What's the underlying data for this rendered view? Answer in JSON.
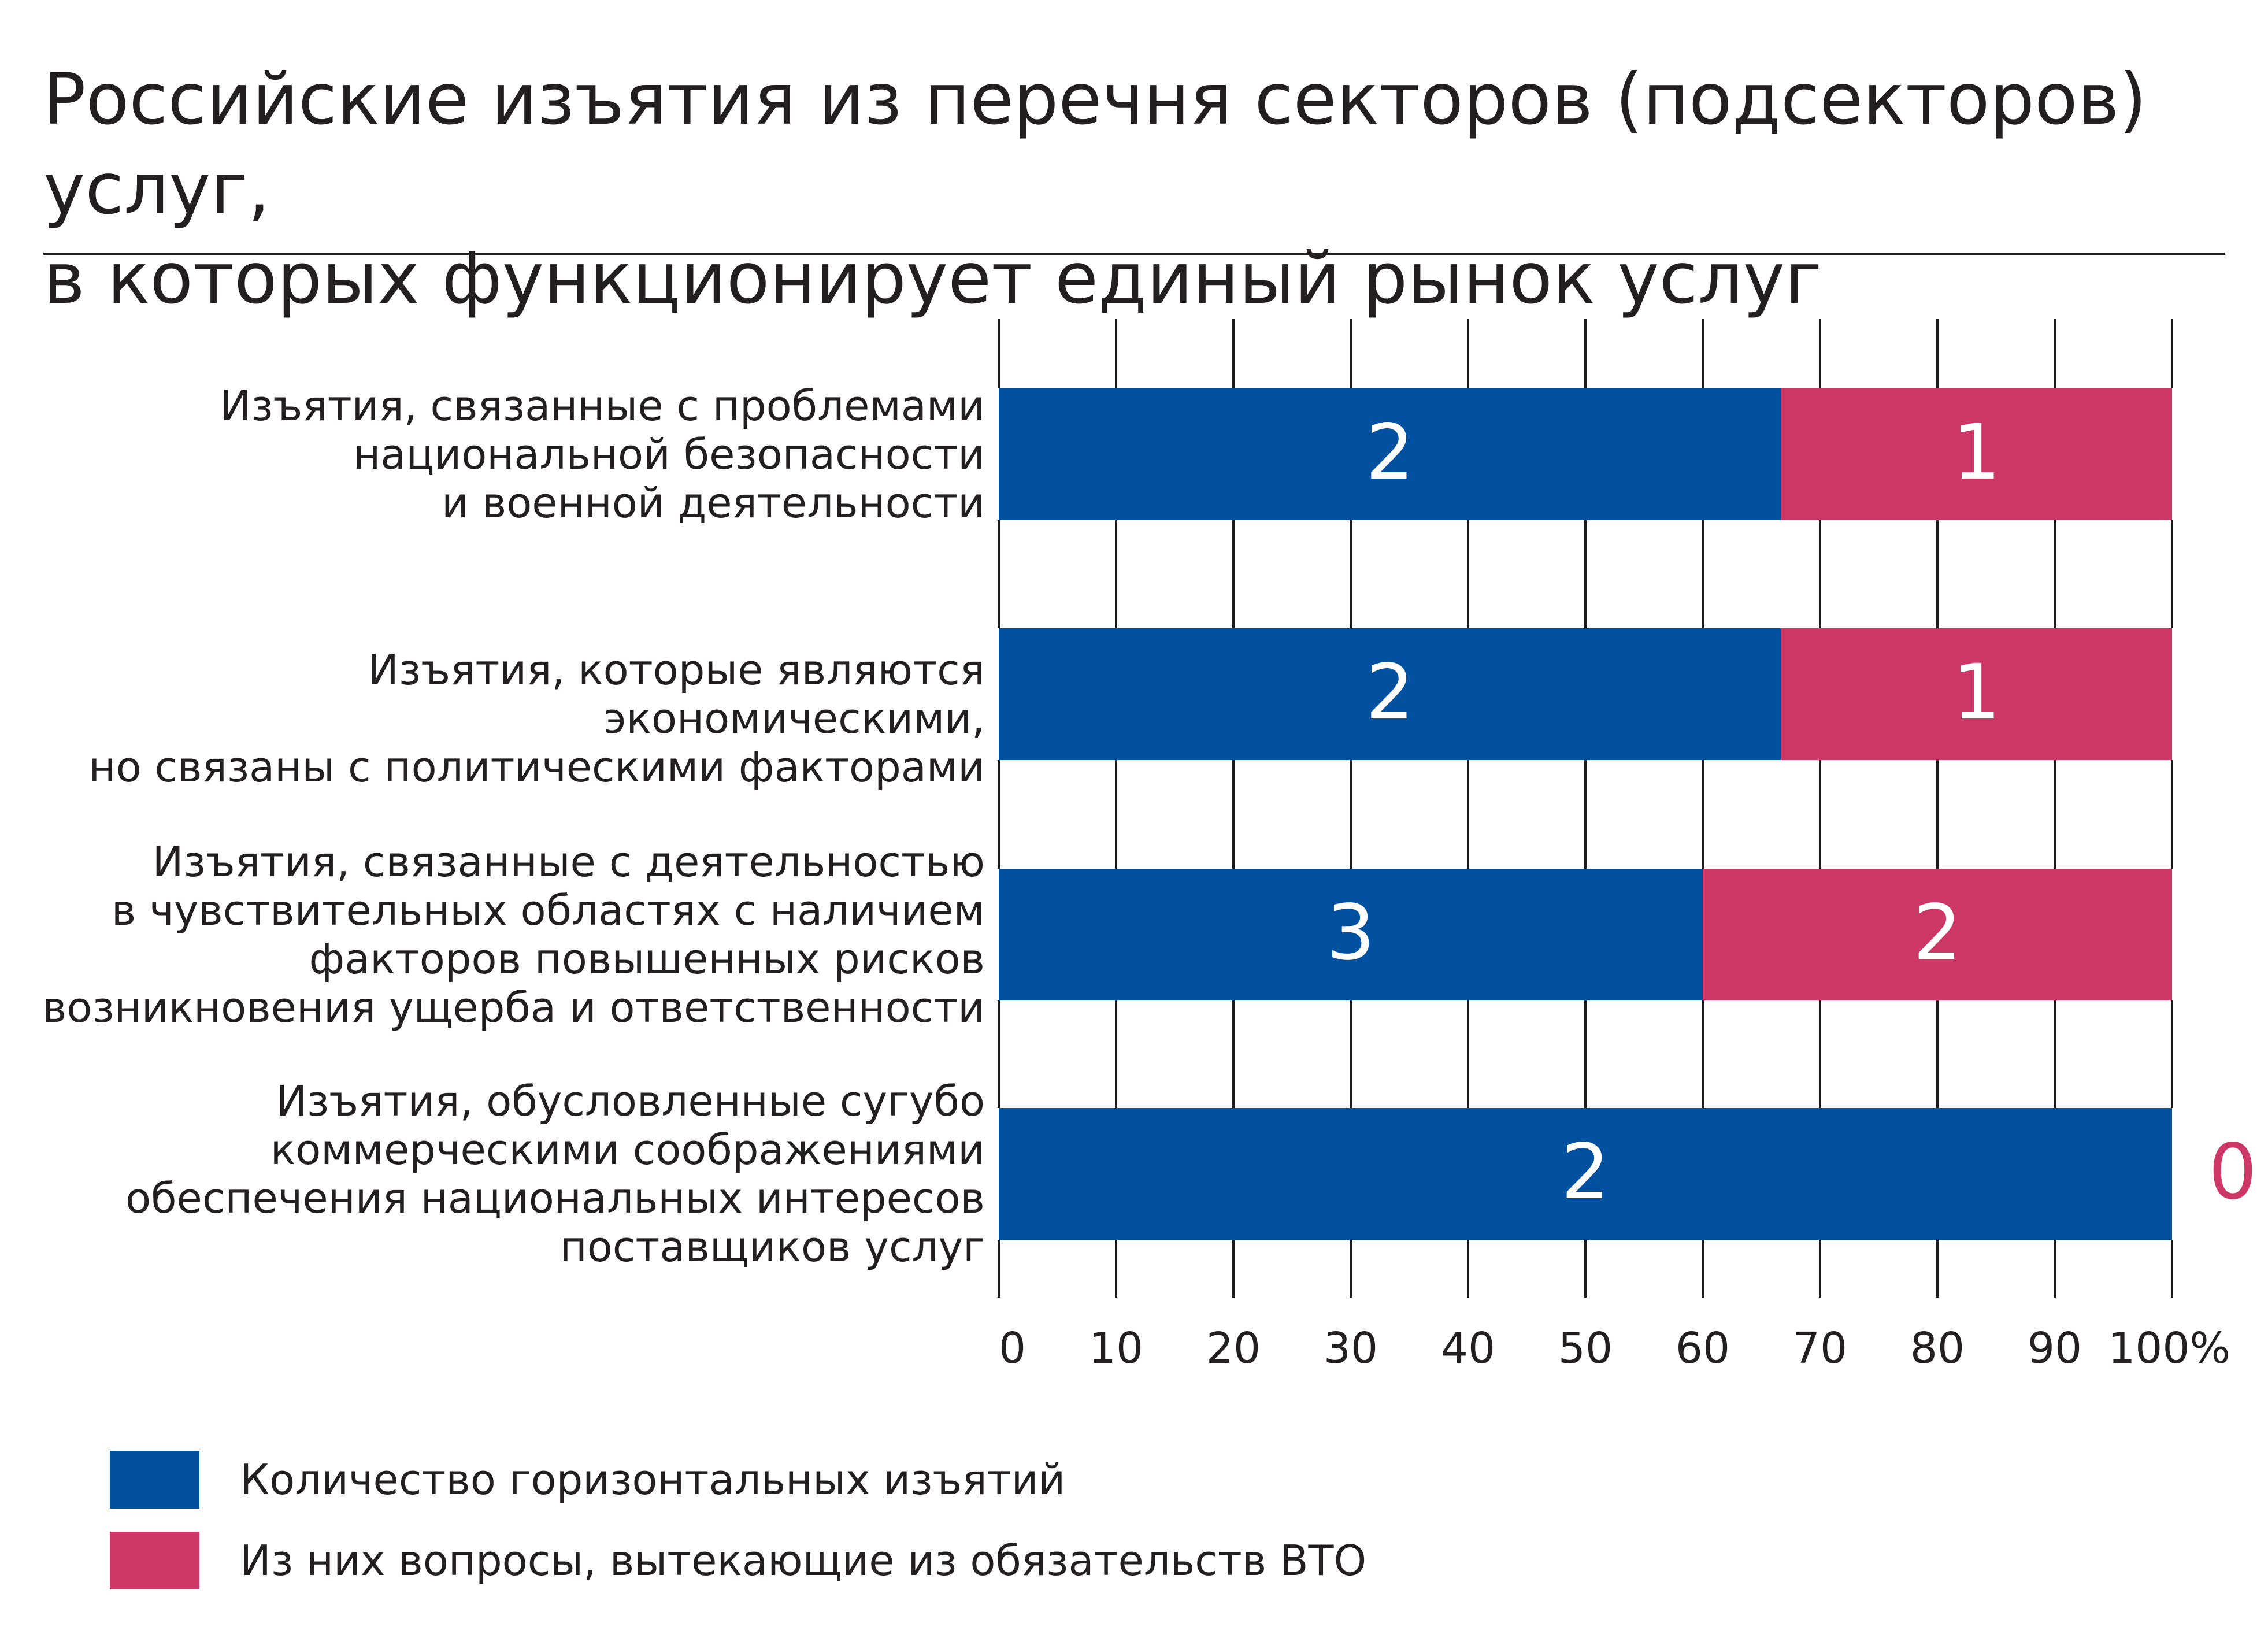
{
  "title": {
    "line1": "Российские изъятия из перечня секторов (подсекторов) услуг,",
    "line2": "в которых функционирует единый рынок услуг"
  },
  "colors": {
    "blue": "#0250a0",
    "pink": "#cc3766",
    "grid": "#1a1a1a",
    "text": "#231f20",
    "bar_label": "#ffffff"
  },
  "chart_data": {
    "type": "bar",
    "orientation": "horizontal",
    "stacked": true,
    "percent_stacked": true,
    "categories": [
      [
        "Изъятия, связанные с проблемами",
        "национальной безопасности",
        "и военной деятельности"
      ],
      [
        "Изъятия, которые являются экономическими,",
        "но связаны с политическими факторами"
      ],
      [
        "Изъятия, связанные с деятельностью",
        "в чувствительных областях с наличием",
        "факторов повышенных рисков",
        "возникновения ущерба и ответственности"
      ],
      [
        "Изъятия, обусловленные сугубо",
        "коммерческими соображениями",
        "обеспечения национальных интересов",
        "поставщиков услуг"
      ]
    ],
    "series": [
      {
        "name": "Количество горизонтальных изъятий",
        "values": [
          2,
          2,
          3,
          2
        ],
        "labels": [
          "2",
          "2",
          "3",
          "2"
        ],
        "color": "#0250a0"
      },
      {
        "name": "Из них вопросы, вытекающие из обязательств ВТО",
        "values": [
          1,
          1,
          2,
          0
        ],
        "labels": [
          "1",
          "1",
          "2",
          "0"
        ],
        "color": "#cc3766"
      }
    ],
    "xlim": [
      0,
      100
    ],
    "xticks": [
      "0",
      "10",
      "20",
      "30",
      "40",
      "50",
      "60",
      "70",
      "80",
      "90",
      "100%"
    ],
    "grid": true,
    "legend_position": "bottom-left"
  }
}
